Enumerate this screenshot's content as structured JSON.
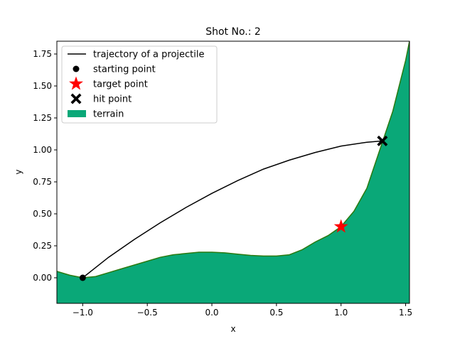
{
  "chart_data": {
    "type": "line",
    "title": "Shot No.: 2",
    "xlabel": "x",
    "ylabel": "y",
    "xlim": [
      -1.2,
      1.53
    ],
    "ylim": [
      -0.2,
      1.85
    ],
    "xticks": [
      -1.0,
      -0.5,
      0.0,
      0.5,
      1.0,
      1.5
    ],
    "xtick_labels": [
      "−1.0",
      "−0.5",
      "0.0",
      "0.5",
      "1.0",
      "1.5"
    ],
    "yticks": [
      0.0,
      0.25,
      0.5,
      0.75,
      1.0,
      1.25,
      1.5,
      1.75
    ],
    "ytick_labels": [
      "0.00",
      "0.25",
      "0.50",
      "0.75",
      "1.00",
      "1.25",
      "1.50",
      "1.75"
    ],
    "grid": false,
    "legend_position": "upper-left",
    "series": [
      {
        "name": "trajectory of a projectile",
        "kind": "line",
        "color": "#000000",
        "x": [
          -1.0,
          -0.8,
          -0.6,
          -0.4,
          -0.2,
          0.0,
          0.2,
          0.4,
          0.6,
          0.8,
          1.0,
          1.2,
          1.32
        ],
        "y": [
          0.0,
          0.16,
          0.3,
          0.43,
          0.55,
          0.66,
          0.76,
          0.85,
          0.92,
          0.98,
          1.03,
          1.06,
          1.07
        ]
      },
      {
        "name": "starting point",
        "kind": "marker",
        "marker": "circle",
        "color": "#000000",
        "x": [
          -1.0
        ],
        "y": [
          0.0
        ]
      },
      {
        "name": "target point",
        "kind": "marker",
        "marker": "star",
        "color": "#ff0000",
        "x": [
          1.0
        ],
        "y": [
          0.4
        ]
      },
      {
        "name": "hit point",
        "kind": "marker",
        "marker": "x",
        "color": "#000000",
        "x": [
          1.32
        ],
        "y": [
          1.07
        ]
      },
      {
        "name": "terrain",
        "kind": "area",
        "fill_color": "#0aa878",
        "edge_color": "#2a7a10",
        "x": [
          -1.2,
          -1.1,
          -1.0,
          -0.9,
          -0.8,
          -0.7,
          -0.6,
          -0.5,
          -0.4,
          -0.3,
          -0.2,
          -0.1,
          0.0,
          0.1,
          0.2,
          0.3,
          0.4,
          0.5,
          0.6,
          0.7,
          0.8,
          0.9,
          1.0,
          1.1,
          1.2,
          1.3,
          1.4,
          1.5,
          1.53
        ],
        "y": [
          0.05,
          0.02,
          0.0,
          0.01,
          0.04,
          0.07,
          0.1,
          0.13,
          0.16,
          0.18,
          0.19,
          0.2,
          0.2,
          0.195,
          0.185,
          0.175,
          0.17,
          0.17,
          0.18,
          0.22,
          0.28,
          0.33,
          0.4,
          0.52,
          0.7,
          1.0,
          1.3,
          1.7,
          1.85
        ]
      }
    ]
  }
}
